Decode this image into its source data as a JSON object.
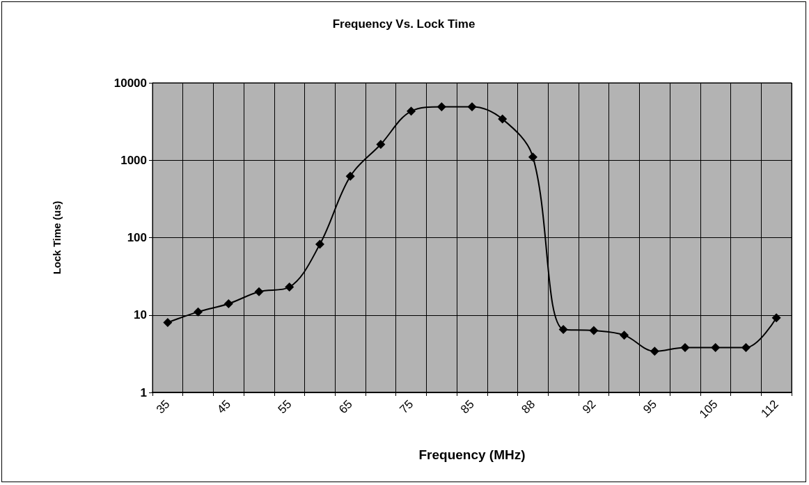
{
  "chart_data": {
    "type": "line",
    "title": "Frequency Vs. Lock Time",
    "xlabel": "Frequency (MHz)",
    "ylabel": "Lock Time (us)",
    "categories": [
      "35",
      null,
      "45",
      null,
      "55",
      null,
      "65",
      null,
      "75",
      null,
      "85",
      null,
      "88",
      null,
      "92",
      null,
      "95",
      null,
      "105",
      null,
      "112"
    ],
    "series": [
      {
        "color": "#000000",
        "values": [
          8,
          11,
          14,
          20,
          23,
          82,
          620,
          1600,
          4300,
          4900,
          4900,
          3400,
          1100,
          6.5,
          6.3,
          5.5,
          3.4,
          3.8,
          3.8,
          3.8,
          9.2
        ]
      }
    ],
    "ylim": [
      1,
      10000
    ],
    "yticks": [
      1,
      10,
      100,
      1000,
      10000
    ],
    "log": true,
    "grid": true,
    "marker": "diamond",
    "line_style": "solid"
  }
}
